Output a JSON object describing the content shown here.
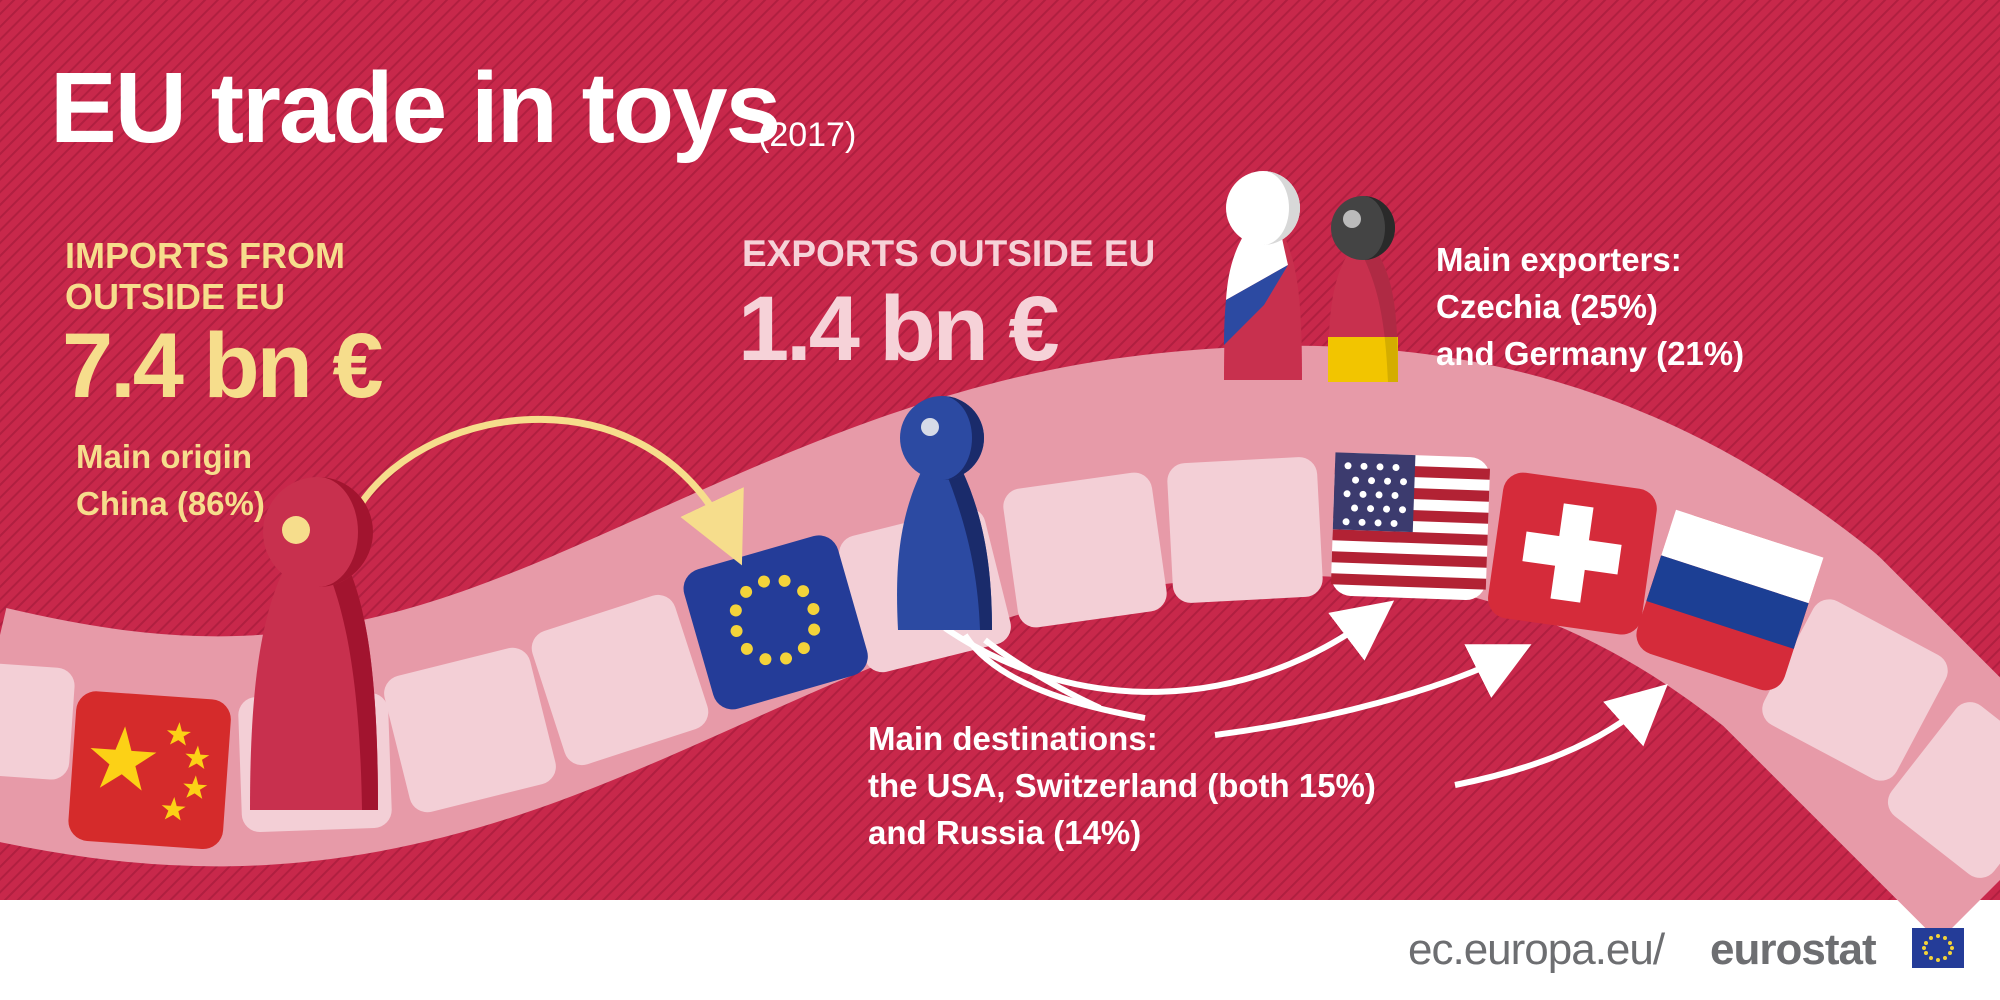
{
  "title": "EU trade in toys",
  "year": "(2017)",
  "imports": {
    "heading": "IMPORTS FROM OUTSIDE EU",
    "value": "7.4 bn €",
    "origin": "Main origin China (86%)"
  },
  "exports": {
    "heading": "EXPORTS OUTSIDE EU",
    "value": "1.4 bn €"
  },
  "exporters_line1": "Main exporters:",
  "exporters_line2": "Czechia (25%)",
  "exporters_line3": "and Germany (21%)",
  "destinations_line1": "Main destinations:",
  "destinations_line2": "the USA, Switzerland (both 15%)",
  "destinations_line3": "and Russia (14%)",
  "footer_url": "ec.europa.eu/",
  "footer_brand": "eurostat",
  "flags": [
    "China",
    "European Union",
    "United States",
    "Switzerland",
    "Russia"
  ],
  "colors": {
    "background": "#c8284b",
    "accent_yellow": "#f6dd8c",
    "path_pink": "#e79aa8",
    "tile_light": "#f3cfd6",
    "footer_text": "#6d6e71"
  }
}
